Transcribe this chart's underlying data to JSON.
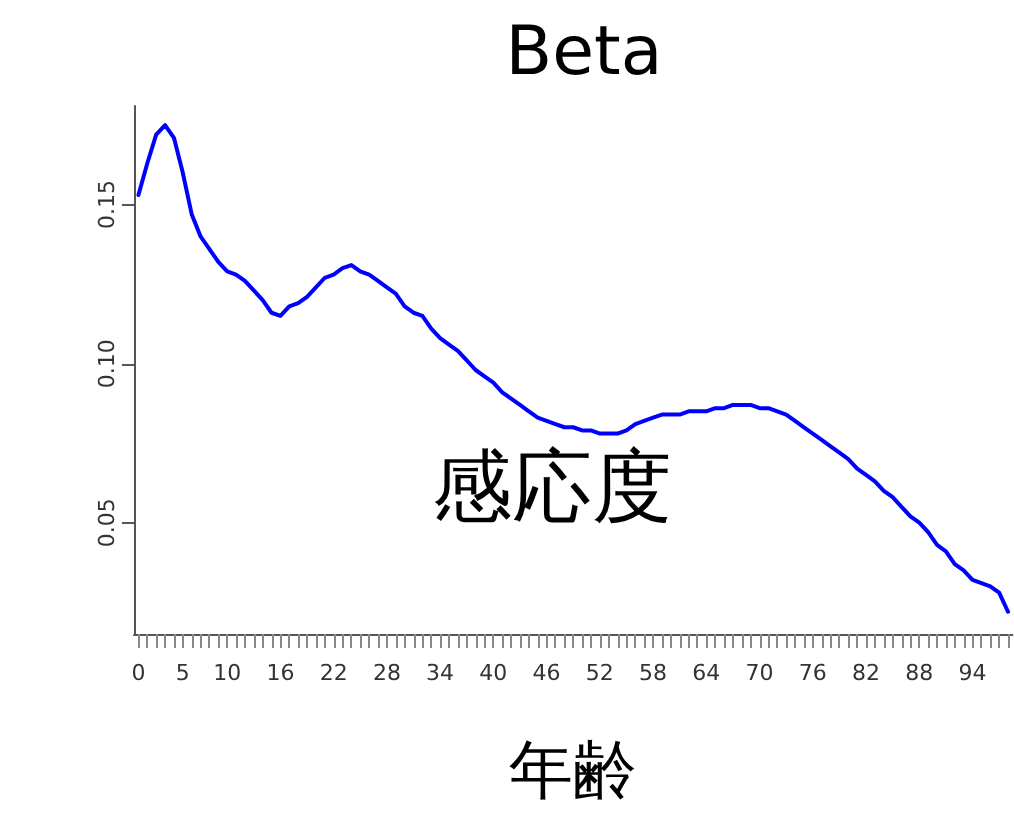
{
  "chart_data": {
    "type": "line",
    "title": "Beta",
    "xlabel": "年齢",
    "annotations": [
      "感応度"
    ],
    "categories": [
      "0",
      null,
      null,
      null,
      null,
      "5",
      null,
      null,
      null,
      null,
      "10",
      null,
      null,
      null,
      null,
      null,
      "16",
      null,
      null,
      null,
      null,
      null,
      "22",
      null,
      null,
      null,
      null,
      null,
      "28",
      null,
      null,
      null,
      null,
      null,
      "34",
      null,
      null,
      null,
      null,
      null,
      "40",
      null,
      null,
      null,
      null,
      null,
      "46",
      null,
      null,
      null,
      null,
      null,
      "52",
      null,
      null,
      null,
      null,
      null,
      "58",
      null,
      null,
      null,
      null,
      null,
      "64",
      null,
      null,
      null,
      null,
      null,
      "70",
      null,
      null,
      null,
      null,
      null,
      "76",
      null,
      null,
      null,
      null,
      null,
      "82",
      null,
      null,
      null,
      null,
      null,
      "88",
      null,
      null,
      null,
      null,
      null,
      "94",
      null,
      null,
      null,
      null
    ],
    "series": [
      {
        "color": "#0000ff",
        "values": [
          0.153,
          0.163,
          0.172,
          0.175,
          0.171,
          0.16,
          0.147,
          0.14,
          0.136,
          0.132,
          0.129,
          0.128,
          0.126,
          0.123,
          0.12,
          0.116,
          0.115,
          0.118,
          0.119,
          0.121,
          0.124,
          0.127,
          0.128,
          0.13,
          0.131,
          0.129,
          0.128,
          0.126,
          0.124,
          0.122,
          0.118,
          0.116,
          0.115,
          0.111,
          0.108,
          0.106,
          0.104,
          0.101,
          0.098,
          0.096,
          0.094,
          0.091,
          0.089,
          0.087,
          0.085,
          0.083,
          0.082,
          0.081,
          0.08,
          0.08,
          0.079,
          0.079,
          0.078,
          0.078,
          0.078,
          0.079,
          0.081,
          0.082,
          0.083,
          0.084,
          0.084,
          0.084,
          0.085,
          0.085,
          0.085,
          0.086,
          0.086,
          0.087,
          0.087,
          0.087,
          0.086,
          0.086,
          0.085,
          0.084,
          0.082,
          0.08,
          0.078,
          0.076,
          0.074,
          0.072,
          0.07,
          0.067,
          0.065,
          0.063,
          0.06,
          0.058,
          0.055,
          0.052,
          0.05,
          0.047,
          0.043,
          0.041,
          0.037,
          0.035,
          0.032,
          0.031,
          0.03,
          0.028,
          0.022
        ]
      }
    ],
    "ylim": [
      0.015,
      0.181
    ],
    "yticks": [
      0.05,
      {
        "value": 0.1,
        "label": "0.10"
      },
      0.15
    ],
    "grid": false,
    "marker": "none",
    "line_style": "solid"
  }
}
